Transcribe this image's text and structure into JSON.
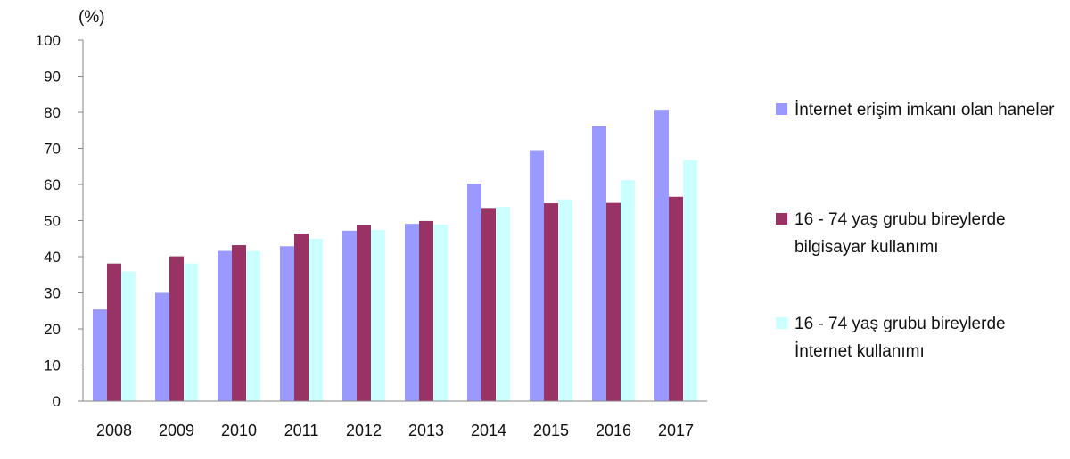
{
  "chart_data": {
    "type": "bar",
    "ylabel": "(%)",
    "ylim": [
      0,
      100
    ],
    "yticks": [
      0,
      10,
      20,
      30,
      40,
      50,
      60,
      70,
      80,
      90,
      100
    ],
    "categories": [
      "2008",
      "2009",
      "2010",
      "2011",
      "2012",
      "2013",
      "2014",
      "2015",
      "2016",
      "2017"
    ],
    "series": [
      {
        "name": "İnternet erişim imkanı olan haneler",
        "color": "#9999ff",
        "values": [
          25.4,
          30.0,
          41.6,
          42.9,
          47.2,
          49.1,
          60.2,
          69.5,
          76.3,
          80.7
        ]
      },
      {
        "name": "16 - 74 yaş grubu bireylerde bilgisayar kullanımı",
        "color": "#993366",
        "values": [
          38.1,
          40.1,
          43.2,
          46.4,
          48.7,
          49.9,
          53.5,
          54.8,
          54.9,
          56.6
        ]
      },
      {
        "name": "16 - 74 yaş grubu bireylerde İnternet kullanımı",
        "color": "#ccffff",
        "values": [
          35.9,
          38.1,
          41.6,
          45.0,
          47.4,
          48.9,
          53.8,
          55.9,
          61.2,
          66.8
        ]
      }
    ],
    "legend_position": "right",
    "grid": false
  }
}
